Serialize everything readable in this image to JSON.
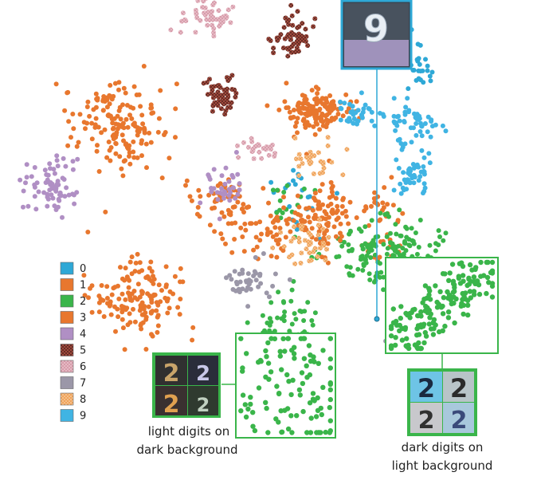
{
  "chart_data": {
    "type": "scatter",
    "title": "",
    "xlabel": "",
    "ylabel": "",
    "legend": {
      "placement": "left",
      "entries": [
        {
          "label": "0",
          "color": "#2ea8d6",
          "texture": "solid"
        },
        {
          "label": "1",
          "color": "#e8772e",
          "texture": "solid"
        },
        {
          "label": "2",
          "color": "#3ab54a",
          "texture": "solid"
        },
        {
          "label": "3",
          "color": "#e8772e",
          "texture": "solid"
        },
        {
          "label": "4",
          "color": "#b08fc4",
          "texture": "solid"
        },
        {
          "label": "5",
          "color": "#a0483c",
          "texture": "dotted-dark"
        },
        {
          "label": "6",
          "color": "#e6b9c4",
          "texture": "dotted-light"
        },
        {
          "label": "7",
          "color": "#9b97a8",
          "texture": "solid"
        },
        {
          "label": "8",
          "color": "#f0a35a",
          "texture": "dotted-light"
        },
        {
          "label": "9",
          "color": "#40b4e3",
          "texture": "solid"
        }
      ]
    },
    "clusters": [
      {
        "digit": "0",
        "cx": 0.52,
        "cy": 0.71,
        "sx": 0.035,
        "sy": 0.06,
        "n": 28
      },
      {
        "digit": "0",
        "cx": 0.04,
        "cy": 0.05,
        "sx": 0.06,
        "sy": 0.1,
        "n": 22
      },
      {
        "digit": "1",
        "cx": -0.69,
        "cy": 0.42,
        "sx": 0.09,
        "sy": 0.11,
        "n": 160
      },
      {
        "digit": "1",
        "cx": -0.62,
        "cy": -0.42,
        "sx": 0.09,
        "sy": 0.09,
        "n": 150
      },
      {
        "digit": "1",
        "cx": -0.28,
        "cy": 0.05,
        "sx": 0.09,
        "sy": 0.05,
        "n": 60
      },
      {
        "digit": "1",
        "cx": 0.36,
        "cy": -0.05,
        "sx": 0.04,
        "sy": 0.1,
        "n": 40
      },
      {
        "digit": "2",
        "cx": 0.38,
        "cy": -0.19,
        "sx": 0.11,
        "sy": 0.08,
        "n": 160
      },
      {
        "digit": "2",
        "cx": -0.02,
        "cy": -0.61,
        "sx": 0.07,
        "sy": 0.1,
        "n": 90
      },
      {
        "digit": "2",
        "cx": 0.0,
        "cy": 0.04,
        "sx": 0.06,
        "sy": 0.06,
        "n": 15
      },
      {
        "digit": "3",
        "cx": 0.09,
        "cy": 0.49,
        "sx": 0.07,
        "sy": 0.05,
        "n": 130
      },
      {
        "digit": "3",
        "cx": 0.14,
        "cy": -0.02,
        "sx": 0.06,
        "sy": 0.09,
        "n": 90
      },
      {
        "digit": "3",
        "cx": -0.07,
        "cy": -0.08,
        "sx": 0.1,
        "sy": 0.06,
        "n": 60
      },
      {
        "digit": "4",
        "cx": -0.95,
        "cy": 0.12,
        "sx": 0.05,
        "sy": 0.07,
        "n": 70
      },
      {
        "digit": "4",
        "cx": -0.27,
        "cy": 0.12,
        "sx": 0.04,
        "sy": 0.05,
        "n": 35
      },
      {
        "digit": "5",
        "cx": -0.28,
        "cy": 0.57,
        "sx": 0.03,
        "sy": 0.05,
        "n": 55
      },
      {
        "digit": "5",
        "cx": 0.0,
        "cy": 0.85,
        "sx": 0.04,
        "sy": 0.06,
        "n": 60
      },
      {
        "digit": "6",
        "cx": -0.33,
        "cy": 0.95,
        "sx": 0.05,
        "sy": 0.05,
        "n": 55
      },
      {
        "digit": "6",
        "cx": -0.13,
        "cy": 0.31,
        "sx": 0.04,
        "sy": 0.03,
        "n": 25
      },
      {
        "digit": "7",
        "cx": -0.16,
        "cy": -0.34,
        "sx": 0.05,
        "sy": 0.06,
        "n": 40
      },
      {
        "digit": "7",
        "cx": 0.45,
        "cy": -0.58,
        "sx": 0.05,
        "sy": 0.04,
        "n": 40
      },
      {
        "digit": "8",
        "cx": 0.06,
        "cy": -0.16,
        "sx": 0.05,
        "sy": 0.05,
        "n": 40
      },
      {
        "digit": "8",
        "cx": 0.1,
        "cy": 0.25,
        "sx": 0.05,
        "sy": 0.04,
        "n": 30
      },
      {
        "digit": "9",
        "cx": 0.49,
        "cy": 0.43,
        "sx": 0.05,
        "sy": 0.05,
        "n": 55
      },
      {
        "digit": "9",
        "cx": 0.49,
        "cy": 0.18,
        "sx": 0.04,
        "sy": 0.05,
        "n": 45
      },
      {
        "digit": "9",
        "cx": 0.28,
        "cy": 0.48,
        "sx": 0.05,
        "sy": 0.04,
        "n": 35
      }
    ],
    "insets": [
      {
        "name": "cluster-zoom-dark-bg",
        "digit": "2",
        "points": 110
      },
      {
        "name": "cluster-zoom-light-bg",
        "digit": "2",
        "points": 170
      }
    ],
    "annotations": [
      {
        "name": "caption-left",
        "lines": [
          "light digits on",
          "dark background"
        ]
      },
      {
        "name": "caption-right",
        "lines": [
          "dark digits on",
          "light background"
        ]
      }
    ]
  }
}
